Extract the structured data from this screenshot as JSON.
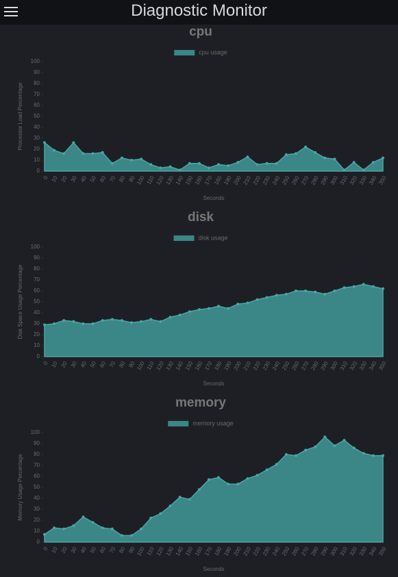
{
  "header": {
    "title": "Diagnostic Monitor"
  },
  "chart_data": [
    {
      "type": "area",
      "title": "cpu",
      "legend": "top",
      "color": "#3b8686",
      "x": [
        0,
        10,
        20,
        30,
        40,
        50,
        60,
        70,
        80,
        90,
        100,
        110,
        120,
        130,
        140,
        150,
        160,
        170,
        180,
        190,
        200,
        210,
        220,
        230,
        240,
        250,
        260,
        270,
        280,
        290,
        300,
        310,
        320,
        330,
        340,
        350
      ],
      "xlim": [
        0,
        350
      ],
      "xlabel": "Seconds",
      "ylabel": "Processor Load Percentage",
      "ylim": [
        0,
        100
      ],
      "yticks": [
        0,
        10,
        20,
        30,
        40,
        50,
        60,
        70,
        80,
        90,
        100
      ],
      "series": [
        {
          "name": "cpu usage",
          "color": "#3b8686",
          "values": [
            26,
            19,
            16,
            26,
            16,
            16,
            17,
            7,
            12,
            10,
            11,
            6,
            3,
            4,
            1,
            7,
            7,
            3,
            6,
            5,
            8,
            13,
            6,
            7,
            7,
            15,
            16,
            22,
            17,
            12,
            11,
            1,
            8,
            1,
            8,
            12
          ]
        }
      ]
    },
    {
      "type": "area",
      "title": "disk",
      "legend": "top",
      "color": "#3b8686",
      "x": [
        0,
        10,
        20,
        30,
        40,
        50,
        60,
        70,
        80,
        90,
        100,
        110,
        120,
        130,
        140,
        150,
        160,
        170,
        180,
        190,
        200,
        210,
        220,
        230,
        240,
        250,
        260,
        270,
        280,
        290,
        300,
        310,
        320,
        330,
        340,
        350
      ],
      "xlim": [
        0,
        350
      ],
      "xlabel": "Seconds",
      "ylabel": "Disk Space Usage Percentage",
      "ylim": [
        0,
        100
      ],
      "yticks": [
        0,
        10,
        20,
        30,
        40,
        50,
        60,
        70,
        80,
        90,
        100
      ],
      "series": [
        {
          "name": "disk usage",
          "color": "#3b8686",
          "values": [
            29,
            30,
            33,
            32,
            30,
            30,
            33,
            34,
            33,
            31,
            32,
            34,
            32,
            36,
            38,
            41,
            43,
            44,
            46,
            44,
            48,
            49,
            52,
            54,
            56,
            57,
            60,
            60,
            59,
            57,
            60,
            63,
            64,
            66,
            64,
            62
          ]
        }
      ]
    },
    {
      "type": "area",
      "title": "memory",
      "legend": "top",
      "color": "#3b8686",
      "x": [
        0,
        10,
        20,
        30,
        40,
        50,
        60,
        70,
        80,
        90,
        100,
        110,
        120,
        130,
        140,
        150,
        160,
        170,
        180,
        190,
        200,
        210,
        220,
        230,
        240,
        250,
        260,
        270,
        280,
        290,
        300,
        310,
        320,
        330,
        340,
        350
      ],
      "xlim": [
        0,
        350
      ],
      "xlabel": "Seconds",
      "ylabel": "Memory Usage Percentage",
      "ylim": [
        0,
        100
      ],
      "yticks": [
        0,
        10,
        20,
        30,
        40,
        50,
        60,
        70,
        80,
        90,
        100
      ],
      "series": [
        {
          "name": "memory usage",
          "color": "#3b8686",
          "values": [
            7,
            13,
            12,
            15,
            23,
            18,
            13,
            12,
            6,
            6,
            12,
            22,
            26,
            33,
            41,
            39,
            48,
            57,
            59,
            53,
            53,
            58,
            61,
            66,
            71,
            80,
            79,
            84,
            87,
            96,
            88,
            93,
            86,
            81,
            79,
            79
          ]
        }
      ]
    }
  ]
}
